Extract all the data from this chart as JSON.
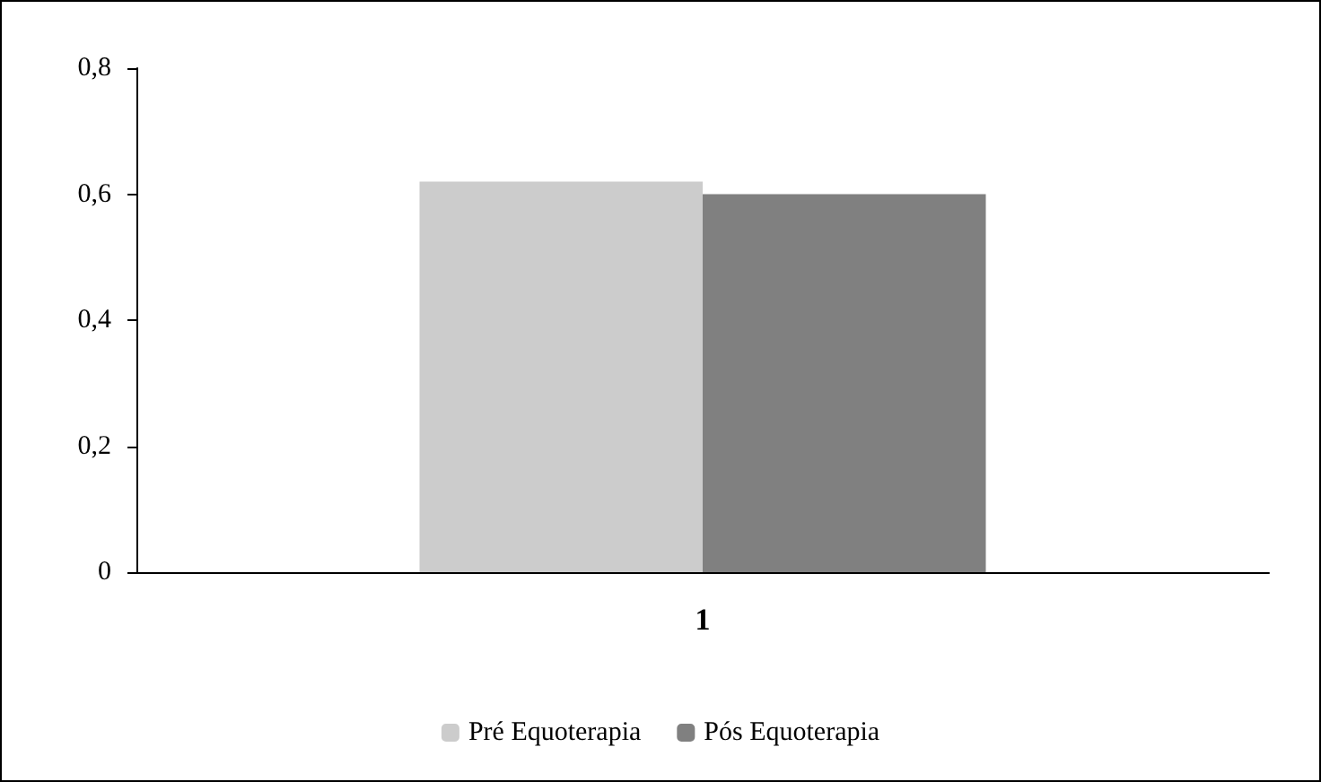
{
  "chart_data": {
    "type": "bar",
    "categories": [
      "1"
    ],
    "series": [
      {
        "name": "Pré Equoterapia",
        "color": "#cccccc",
        "values": [
          0.62
        ]
      },
      {
        "name": "Pós Equoterapia",
        "color": "#808080",
        "values": [
          0.6
        ]
      }
    ],
    "ylim": [
      0,
      0.8
    ],
    "yticks": [
      {
        "value": 0,
        "label": "0"
      },
      {
        "value": 0.2,
        "label": "0,2"
      },
      {
        "value": 0.4,
        "label": "0,4"
      },
      {
        "value": 0.6,
        "label": "0,6"
      },
      {
        "value": 0.8,
        "label": "0,8"
      }
    ],
    "grid": false,
    "legend": "bottom"
  }
}
